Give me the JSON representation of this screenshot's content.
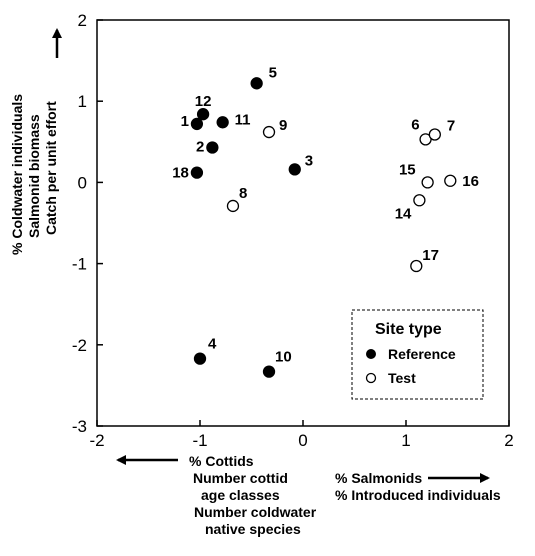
{
  "chart_data": {
    "type": "scatter",
    "xlim": [
      -2,
      2
    ],
    "ylim": [
      -3,
      2
    ],
    "x_ticks": [
      "-2",
      "-1",
      "0",
      "1",
      "2"
    ],
    "y_ticks": [
      "2",
      "1",
      "0",
      "-1",
      "-2",
      "-3"
    ],
    "y_axis_label_lines": [
      "% Coldwater individuals",
      "Salmonid biomass",
      "Catch per unit effort"
    ],
    "x_axis_left_label_lines": [
      "% Cottids",
      "Number cottid",
      "age classes",
      "Number coldwater",
      "native species"
    ],
    "x_axis_right_label_lines": [
      "% Salmonids",
      "% Introduced individuals"
    ],
    "legend": {
      "title": "Site type",
      "items": [
        {
          "label": "Reference",
          "marker": "filled"
        },
        {
          "label": "Test",
          "marker": "open"
        }
      ]
    },
    "series": [
      {
        "name": "Reference",
        "points": [
          {
            "label": "1",
            "x": -1.03,
            "y": 0.72
          },
          {
            "label": "12",
            "x": -0.97,
            "y": 0.84
          },
          {
            "label": "11",
            "x": -0.78,
            "y": 0.74
          },
          {
            "label": "5",
            "x": -0.45,
            "y": 1.22
          },
          {
            "label": "2",
            "x": -0.88,
            "y": 0.43
          },
          {
            "label": "18",
            "x": -1.03,
            "y": 0.12
          },
          {
            "label": "3",
            "x": -0.08,
            "y": 0.16
          },
          {
            "label": "4",
            "x": -1.0,
            "y": -2.17
          },
          {
            "label": "10",
            "x": -0.33,
            "y": -2.33
          }
        ]
      },
      {
        "name": "Test",
        "points": [
          {
            "label": "9",
            "x": -0.33,
            "y": 0.62
          },
          {
            "label": "8",
            "x": -0.68,
            "y": -0.29
          },
          {
            "label": "6",
            "x": 1.19,
            "y": 0.53
          },
          {
            "label": "7",
            "x": 1.28,
            "y": 0.59
          },
          {
            "label": "15",
            "x": 1.21,
            "y": 0.0
          },
          {
            "label": "16",
            "x": 1.43,
            "y": 0.02
          },
          {
            "label": "14",
            "x": 1.13,
            "y": -0.22
          },
          {
            "label": "17",
            "x": 1.1,
            "y": -1.03
          }
        ]
      }
    ]
  }
}
